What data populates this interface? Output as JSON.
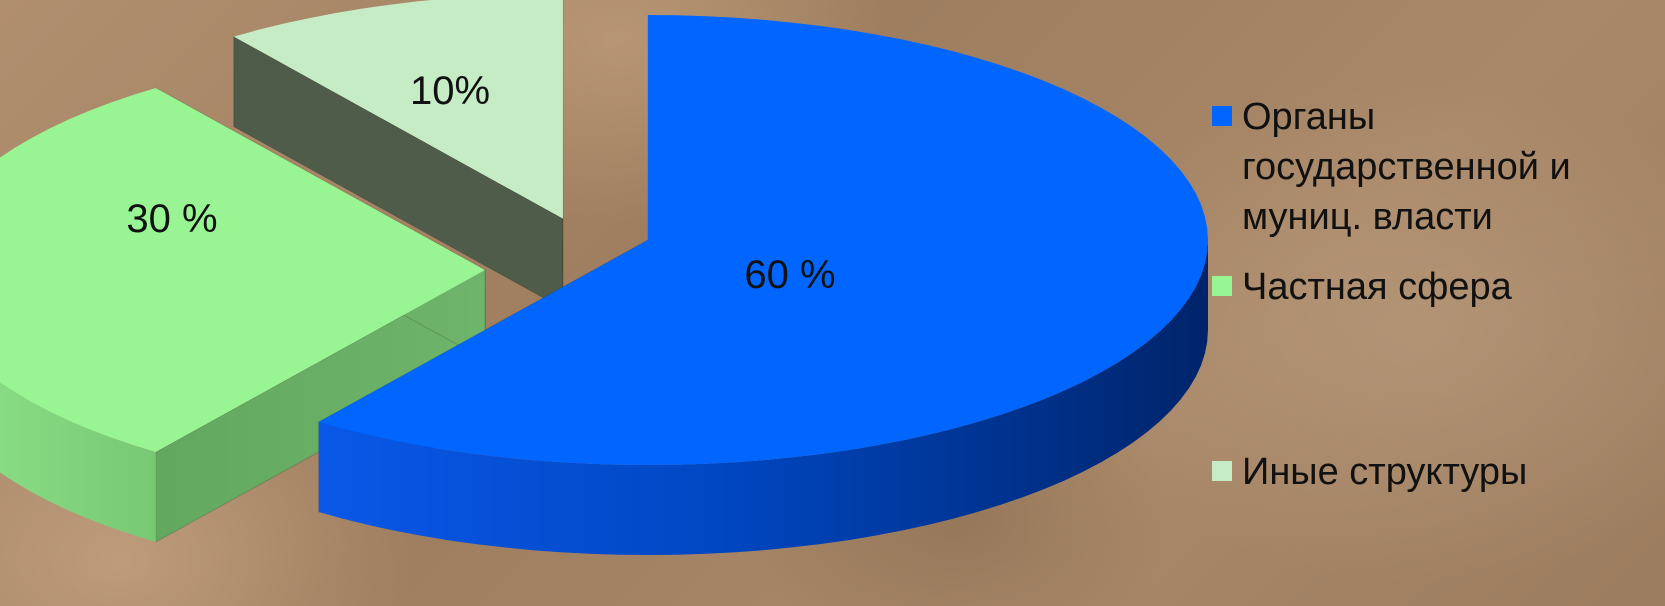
{
  "chart_data": {
    "type": "pie",
    "is_3d": true,
    "exploded": true,
    "slices": [
      {
        "name": "Органы государственной и муниц. власти",
        "value": 60,
        "label": "60 %",
        "color": "#0066ff"
      },
      {
        "name": "Частная сфера",
        "value": 30,
        "label": "30 %",
        "color": "#99f593"
      },
      {
        "name": "Иные структуры",
        "value": 10,
        "label": "10%",
        "color": "#c5ecc4"
      }
    ],
    "legend": {
      "position": "right",
      "entries": [
        {
          "text": "Органы\nгосударственной и\nмуниц. власти",
          "color": "#0066ff"
        },
        {
          "text": "Частная сфера",
          "color": "#99f593"
        },
        {
          "text": "Иные структуры",
          "color": "#c5ecc4"
        }
      ]
    }
  }
}
